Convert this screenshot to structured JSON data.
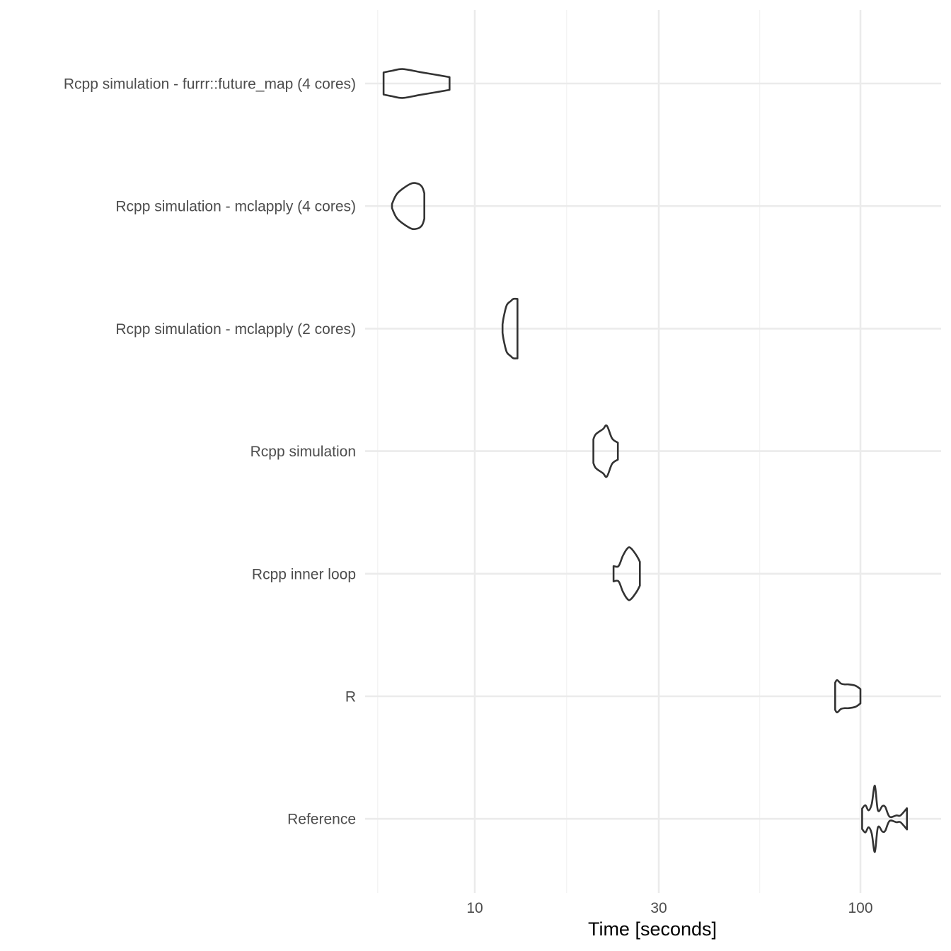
{
  "chart_data": {
    "type": "violin",
    "x_scale": "log10",
    "xlim": [
      5,
      135
    ],
    "xlabel": "Time [seconds]",
    "ylabel": "",
    "x_ticks": [
      {
        "value": 10,
        "label": "10"
      },
      {
        "value": 30,
        "label": "30"
      },
      {
        "value": 100,
        "label": "100"
      }
    ],
    "x_minor_gridlines": [
      5.6,
      17.3,
      54.8
    ],
    "grid": true,
    "legend": "none",
    "line_color": "#333333",
    "series": [
      {
        "name": "Rcpp simulation - furrr::future_map (4 cores)",
        "density": [
          [
            5.8,
            0.26
          ],
          [
            6.1,
            0.3
          ],
          [
            6.5,
            0.34
          ],
          [
            7.2,
            0.27
          ],
          [
            8.0,
            0.2
          ],
          [
            8.6,
            0.15
          ]
        ]
      },
      {
        "name": "Rcpp simulation - mclapply (4 cores)",
        "density": [
          [
            6.1,
            0.05
          ],
          [
            6.3,
            0.3
          ],
          [
            6.8,
            0.52
          ],
          [
            7.1,
            0.53
          ],
          [
            7.3,
            0.45
          ],
          [
            7.4,
            0.3
          ]
        ]
      },
      {
        "name": "Rcpp simulation - mclapply (2 cores)",
        "density": [
          [
            11.8,
            0.1
          ],
          [
            11.9,
            0.3
          ],
          [
            12.1,
            0.55
          ],
          [
            12.4,
            0.65
          ],
          [
            12.6,
            0.7
          ],
          [
            12.9,
            0.7
          ]
        ]
      },
      {
        "name": "Rcpp simulation",
        "density": [
          [
            20.3,
            0.28
          ],
          [
            20.6,
            0.4
          ],
          [
            21.5,
            0.52
          ],
          [
            22.0,
            0.6
          ],
          [
            22.7,
            0.3
          ],
          [
            23.5,
            0.2
          ]
        ]
      },
      {
        "name": "Rcpp inner loop",
        "density": [
          [
            22.9,
            0.18
          ],
          [
            23.6,
            0.18
          ],
          [
            24.2,
            0.42
          ],
          [
            24.9,
            0.6
          ],
          [
            25.4,
            0.6
          ],
          [
            26.3,
            0.42
          ],
          [
            26.8,
            0.28
          ]
        ]
      },
      {
        "name": "R",
        "density": [
          [
            86,
            0.32
          ],
          [
            87,
            0.38
          ],
          [
            89,
            0.3
          ],
          [
            91,
            0.28
          ],
          [
            93,
            0.28
          ],
          [
            97,
            0.25
          ],
          [
            100,
            0.17
          ]
        ]
      },
      {
        "name": "Reference",
        "density": [
          [
            101,
            0.24
          ],
          [
            103,
            0.32
          ],
          [
            105,
            0.2
          ],
          [
            107,
            0.35
          ],
          [
            109,
            0.78
          ],
          [
            111,
            0.2
          ],
          [
            114,
            0.3
          ],
          [
            116,
            0.28
          ],
          [
            119,
            0.05
          ],
          [
            124,
            0.08
          ],
          [
            127,
            0.08
          ],
          [
            132,
            0.25
          ]
        ]
      }
    ]
  }
}
